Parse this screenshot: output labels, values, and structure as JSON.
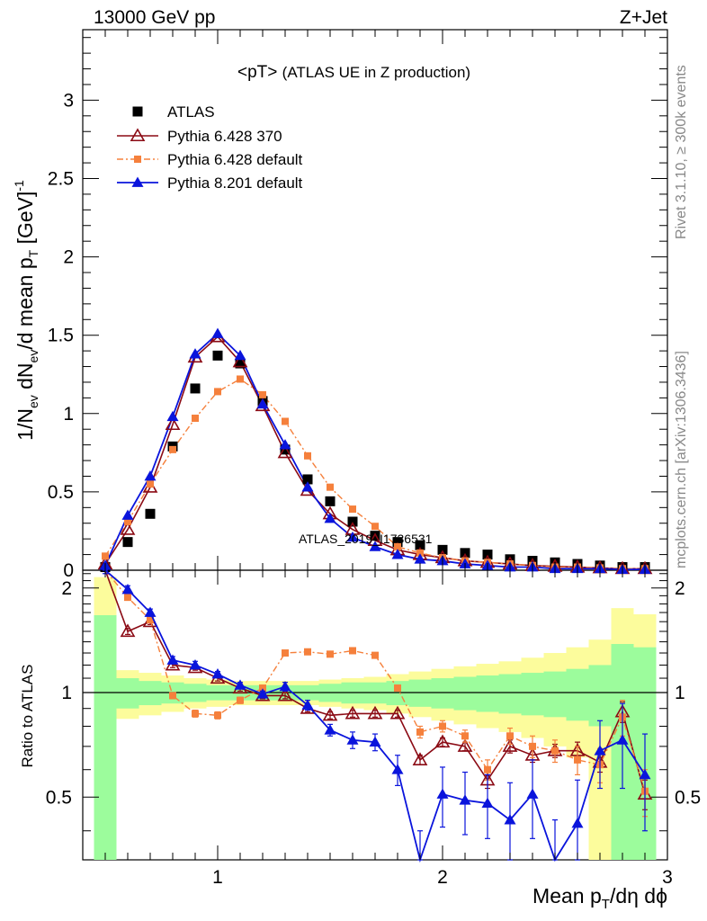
{
  "header": {
    "left": "13000 GeV pp",
    "right": "Z+Jet"
  },
  "side_labels": {
    "rivet": "Rivet 3.1.10, ≥ 300k events",
    "mcplots": "mcplots.cern.ch [arXiv:1306.3436]"
  },
  "watermark": "ATLAS_2019_I1736531",
  "colors": {
    "data": "#000000",
    "p6_370": "#8b0a14",
    "p6_default": "#f5803c",
    "p8": "#0a14dc",
    "band_inner": "#9cfc9c",
    "band_outer": "#fcfc9c"
  },
  "chart_data": [
    {
      "type": "scatter",
      "panel": "main",
      "title": "<pT>",
      "title_note": "(ATLAS UE in Z production)",
      "ylabel": "1/N_ev dN_ev/d mean p_T [GeV]^-1",
      "xlim": [
        0.4,
        3.0
      ],
      "ylim": [
        0,
        3.45
      ],
      "xticks": [
        1,
        2,
        3
      ],
      "yticks": [
        0,
        0.5,
        1,
        1.5,
        2,
        2.5,
        3
      ],
      "legend": {
        "position": "top-left",
        "entries": [
          "ATLAS",
          "Pythia 6.428 370",
          "Pythia 6.428 default",
          "Pythia 8.201 default"
        ]
      },
      "x": [
        0.5,
        0.6,
        0.7,
        0.8,
        0.9,
        1.0,
        1.1,
        1.2,
        1.3,
        1.4,
        1.5,
        1.6,
        1.7,
        1.8,
        1.9,
        2.0,
        2.1,
        2.2,
        2.3,
        2.4,
        2.5,
        2.6,
        2.7,
        2.8,
        2.9
      ],
      "series": [
        {
          "name": "ATLAS",
          "key": "data",
          "values": [
            0.02,
            0.18,
            0.36,
            0.79,
            1.16,
            1.37,
            1.32,
            1.08,
            0.77,
            0.58,
            0.44,
            0.31,
            0.22,
            0.18,
            0.16,
            0.13,
            0.11,
            0.1,
            0.07,
            0.06,
            0.05,
            0.04,
            0.03,
            0.02,
            0.02
          ]
        },
        {
          "name": "Pythia 6.428 370",
          "key": "p6_370",
          "values": [
            0.04,
            0.26,
            0.53,
            0.93,
            1.36,
            1.49,
            1.33,
            1.05,
            0.75,
            0.51,
            0.36,
            0.26,
            0.19,
            0.13,
            0.1,
            0.08,
            0.06,
            0.05,
            0.04,
            0.03,
            0.025,
            0.02,
            0.015,
            0.01,
            0.01
          ]
        },
        {
          "name": "Pythia 6.428 default",
          "key": "p6_default",
          "values": [
            0.09,
            0.31,
            0.55,
            0.77,
            0.97,
            1.14,
            1.22,
            1.12,
            0.95,
            0.73,
            0.53,
            0.39,
            0.28,
            0.15,
            0.11,
            0.08,
            0.06,
            0.05,
            0.04,
            0.03,
            0.02,
            0.02,
            0.015,
            0.01,
            0.01
          ]
        },
        {
          "name": "Pythia 8.201 default",
          "key": "p8",
          "values": [
            0.03,
            0.35,
            0.6,
            0.98,
            1.38,
            1.51,
            1.37,
            1.06,
            0.8,
            0.53,
            0.33,
            0.21,
            0.15,
            0.1,
            0.07,
            0.06,
            0.04,
            0.03,
            0.02,
            0.02,
            0.01,
            0.01,
            0.01,
            0.005,
            0.005
          ]
        }
      ]
    },
    {
      "type": "line",
      "panel": "ratio",
      "ylabel": "Ratio to ATLAS",
      "xlabel": "Mean p_T/dη dφ",
      "xlim": [
        0.4,
        3.0
      ],
      "ylim": [
        0.33,
        2.25
      ],
      "xticks": [
        1,
        2,
        3
      ],
      "yticks": [
        0.5,
        1,
        2
      ],
      "reference": 1.0,
      "band_bins": [
        0.45,
        0.55,
        0.65,
        0.75,
        0.85,
        0.95,
        1.05,
        1.15,
        1.25,
        1.35,
        1.45,
        1.55,
        1.65,
        1.75,
        1.85,
        1.95,
        2.05,
        2.15,
        2.25,
        2.35,
        2.45,
        2.55,
        2.65,
        2.75,
        2.85,
        2.95
      ],
      "band_inner": {
        "lo": [
          0.33,
          0.9,
          0.92,
          0.93,
          0.94,
          0.95,
          0.95,
          0.95,
          0.95,
          0.95,
          0.94,
          0.93,
          0.93,
          0.92,
          0.91,
          0.9,
          0.89,
          0.88,
          0.87,
          0.86,
          0.85,
          0.83,
          0.8,
          0.33,
          0.33
        ],
        "hi": [
          1.67,
          1.1,
          1.08,
          1.07,
          1.06,
          1.05,
          1.05,
          1.05,
          1.05,
          1.05,
          1.06,
          1.07,
          1.07,
          1.08,
          1.09,
          1.1,
          1.11,
          1.12,
          1.13,
          1.14,
          1.15,
          1.17,
          1.2,
          1.38,
          1.35
        ]
      },
      "band_outer": {
        "lo": [
          0.33,
          0.84,
          0.86,
          0.88,
          0.9,
          0.91,
          0.92,
          0.92,
          0.92,
          0.92,
          0.91,
          0.9,
          0.89,
          0.87,
          0.85,
          0.83,
          0.81,
          0.79,
          0.77,
          0.74,
          0.7,
          0.65,
          0.33,
          0.33,
          0.33
        ],
        "hi": [
          2.15,
          1.16,
          1.14,
          1.12,
          1.1,
          1.09,
          1.08,
          1.08,
          1.08,
          1.08,
          1.09,
          1.1,
          1.11,
          1.13,
          1.15,
          1.17,
          1.19,
          1.21,
          1.23,
          1.26,
          1.3,
          1.35,
          1.42,
          1.75,
          1.68
        ]
      },
      "x": [
        0.5,
        0.6,
        0.7,
        0.8,
        0.9,
        1.0,
        1.1,
        1.2,
        1.3,
        1.4,
        1.5,
        1.6,
        1.7,
        1.8,
        1.9,
        2.0,
        2.1,
        2.2,
        2.3,
        2.4,
        2.5,
        2.6,
        2.7,
        2.8,
        2.9
      ],
      "series": [
        {
          "name": "Pythia 6.428 370",
          "key": "p6_370",
          "values": [
            2.3,
            1.5,
            1.6,
            1.2,
            1.18,
            1.1,
            1.03,
            0.98,
            0.98,
            0.9,
            0.86,
            0.87,
            0.87,
            0.87,
            0.64,
            0.72,
            0.7,
            0.56,
            0.7,
            0.66,
            0.68,
            0.68,
            0.63,
            0.88,
            0.51
          ],
          "err": [
            0.05,
            0.03,
            0.03,
            0.02,
            0.02,
            0.02,
            0.02,
            0.02,
            0.02,
            0.02,
            0.02,
            0.02,
            0.02,
            0.02,
            0.02,
            0.02,
            0.02,
            0.03,
            0.03,
            0.03,
            0.03,
            0.04,
            0.04,
            0.06,
            0.05
          ]
        },
        {
          "name": "Pythia 6.428 default",
          "key": "p6_default",
          "values": [
            2.3,
            1.88,
            1.62,
            0.98,
            0.87,
            0.86,
            0.95,
            1.03,
            1.3,
            1.31,
            1.29,
            1.32,
            1.28,
            1.03,
            0.77,
            0.8,
            0.75,
            0.6,
            0.75,
            0.7,
            0.68,
            0.64,
            0.62,
            0.85,
            0.52
          ],
          "err": [
            0.05,
            0.03,
            0.03,
            0.02,
            0.02,
            0.02,
            0.02,
            0.02,
            0.02,
            0.02,
            0.02,
            0.02,
            0.02,
            0.02,
            0.03,
            0.03,
            0.03,
            0.04,
            0.04,
            0.05,
            0.05,
            0.06,
            0.07,
            0.1,
            0.08
          ]
        },
        {
          "name": "Pythia 8.201 default",
          "key": "p8",
          "values": [
            2.3,
            1.98,
            1.7,
            1.24,
            1.2,
            1.13,
            1.05,
            0.99,
            1.04,
            0.92,
            0.78,
            0.73,
            0.72,
            0.6,
            0.3,
            0.51,
            0.49,
            0.48,
            0.43,
            0.51,
            0.3,
            0.42,
            0.68,
            0.73,
            0.58
          ],
          "err": [
            0.1,
            0.05,
            0.04,
            0.03,
            0.03,
            0.02,
            0.02,
            0.02,
            0.03,
            0.03,
            0.03,
            0.04,
            0.04,
            0.06,
            0.1,
            0.1,
            0.1,
            0.1,
            0.12,
            0.13,
            0.13,
            0.14,
            0.15,
            0.2,
            0.18
          ]
        }
      ]
    }
  ]
}
